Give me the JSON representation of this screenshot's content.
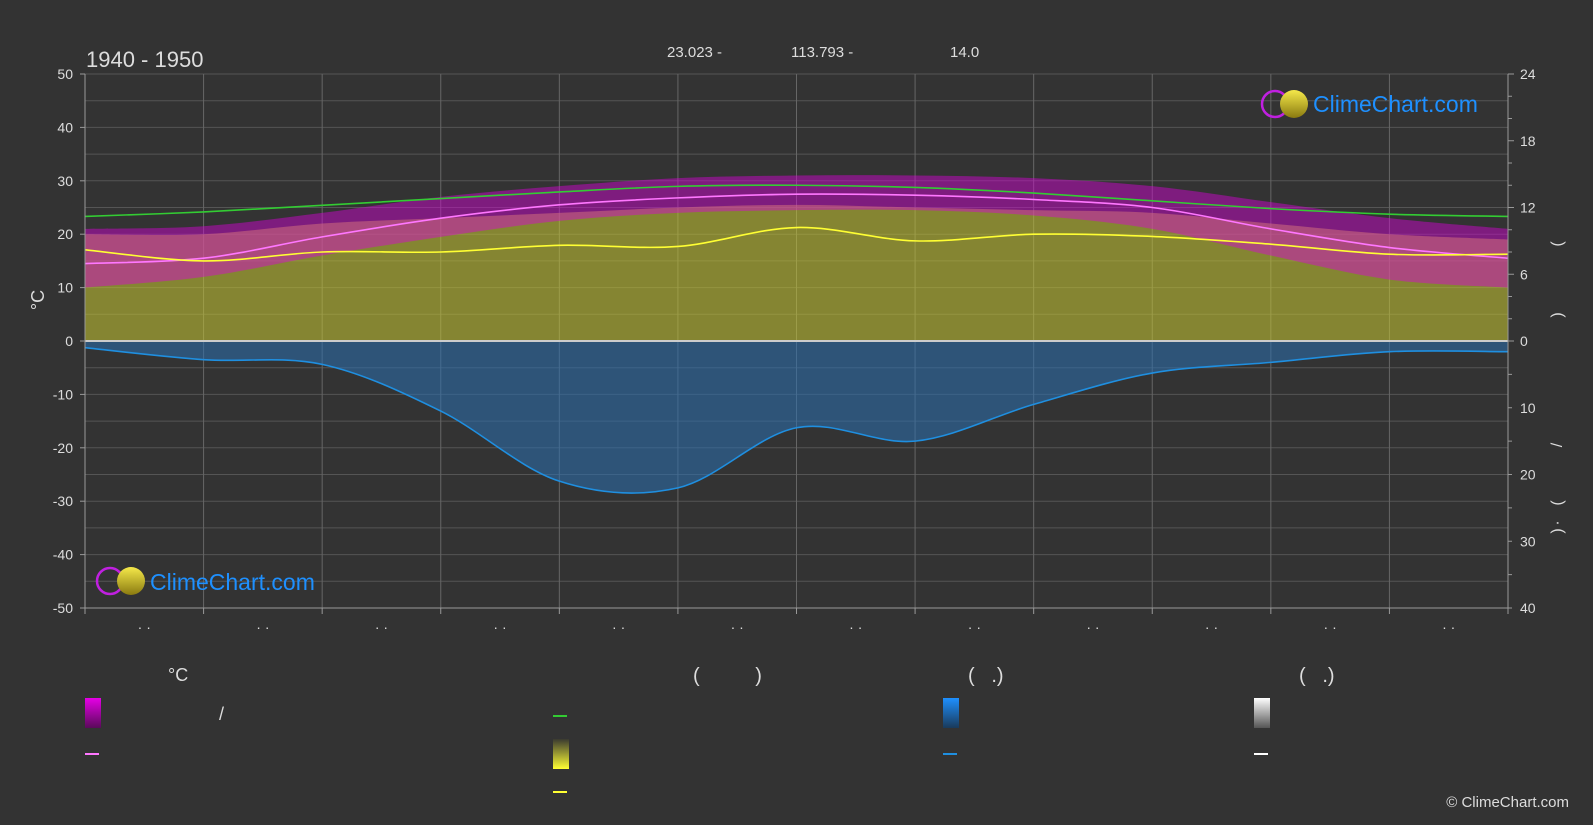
{
  "period": "1940 - 1950",
  "header": {
    "lat": "23.023 -",
    "lon": "113.793 -",
    "elev": "14.0"
  },
  "brand": "ClimeChart.com",
  "copyright": "© ClimeChart.com",
  "legend": {
    "col1_header": "°C",
    "col1_slash": "/",
    "col2_header": "(          )",
    "col3_header": "(   .)",
    "col4_header": "(   .)"
  },
  "colors": {
    "background": "#333333",
    "max_min_band": "#d900d9",
    "sunshine_band": "#c8c832",
    "daylight_line": "#33cc33",
    "sunshine_line": "#ffff33",
    "mean_temp_line": "#ff77ff",
    "precip_band": "#2a6fb0",
    "precip_line": "#1f8fe0",
    "zero_line": "#cccccc",
    "brand_blue": "#1e90ff"
  },
  "chart_data": {
    "type": "area",
    "x": [
      0,
      1,
      2,
      3,
      4,
      5,
      6,
      7,
      8,
      9,
      10,
      11,
      12
    ],
    "x_tick_labels": [
      "· ·",
      "· ·",
      "· ·",
      "· ·",
      "· ·",
      "· ·",
      "· ·",
      "· ·",
      "· ·",
      "· ·",
      "· ·",
      "· ·"
    ],
    "ylabel_left": "°C",
    "ylim_left": [
      -50,
      50
    ],
    "left_ticks": [
      50,
      40,
      30,
      20,
      10,
      0,
      -10,
      -20,
      -30,
      -40,
      -50
    ],
    "ylim_right_top": [
      0,
      24
    ],
    "right_ticks_top": [
      24,
      18,
      12,
      6,
      0
    ],
    "ylim_right_bottom": [
      0,
      40
    ],
    "right_ticks_bottom": [
      10,
      20,
      30,
      40
    ],
    "right_axis_glyphs": [
      "(",
      ")",
      "/",
      "(",
      "·",
      ")"
    ],
    "grid": true,
    "series": [
      {
        "key": "daylight",
        "axis": "right_top",
        "values": [
          11.2,
          11.6,
          12.2,
          12.8,
          13.4,
          13.9,
          14.0,
          13.8,
          13.3,
          12.6,
          11.9,
          11.4,
          11.2
        ]
      },
      {
        "key": "max_temp",
        "axis": "left",
        "values": [
          21,
          21.5,
          24,
          27,
          29,
          30.5,
          31,
          31,
          30.5,
          29,
          26,
          23,
          21
        ]
      },
      {
        "key": "min_temp",
        "axis": "left",
        "values": [
          10,
          12,
          16,
          19.5,
          22.5,
          24,
          24.5,
          24.5,
          23.5,
          21,
          16,
          11.5,
          10
        ]
      },
      {
        "key": "mean_temp",
        "axis": "left",
        "values": [
          14.5,
          15.5,
          19.5,
          23,
          25.5,
          26.8,
          27.5,
          27.3,
          26.5,
          25,
          21,
          17.5,
          15.5
        ]
      },
      {
        "key": "sunshine",
        "axis": "right_top",
        "values": [
          8.2,
          7.2,
          8.0,
          8.0,
          8.6,
          8.5,
          10.2,
          9.0,
          9.6,
          9.4,
          8.7,
          7.8,
          7.8
        ]
      },
      {
        "key": "sunshine_band_top",
        "axis": "left",
        "values": [
          20,
          20,
          22,
          23,
          24,
          25,
          25.5,
          25,
          24.5,
          24,
          22,
          20,
          19
        ]
      },
      {
        "key": "precipitation",
        "axis": "right_bottom",
        "values": [
          1.0,
          2.8,
          3.5,
          10.5,
          21.0,
          22.0,
          13.0,
          15.0,
          9.5,
          4.8,
          3.2,
          1.6,
          1.6
        ]
      }
    ]
  }
}
